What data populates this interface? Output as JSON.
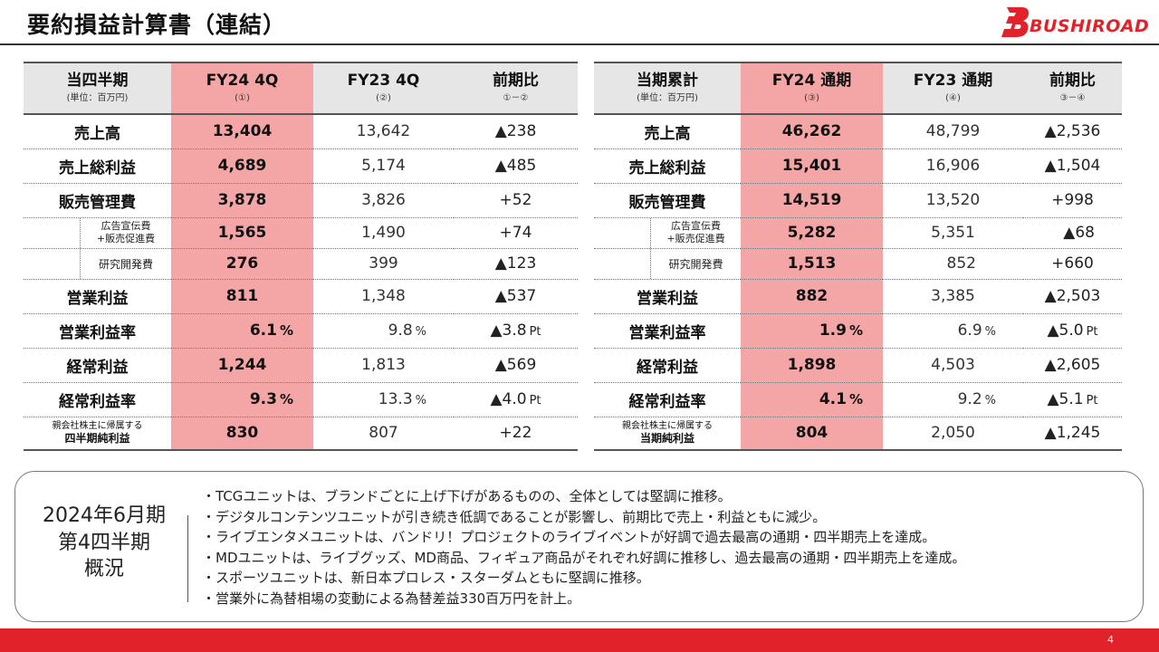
{
  "page": {
    "title": "要約損益計算書（連結）",
    "logo_text": "BUSHIROAD",
    "page_number": "4",
    "accent_color": "#e2222a",
    "highlight_color": "#f4a6a6"
  },
  "quarter_table": {
    "header": {
      "col_label": "当四半期",
      "col_label_sub": "(単位：百万円)",
      "col_cur": "FY24 4Q",
      "col_cur_sub": "(①)",
      "col_prev": "FY23 4Q",
      "col_prev_sub": "(②)",
      "col_diff": "前期比",
      "col_diff_sub": "①－②"
    },
    "rows": [
      {
        "label": "売上高",
        "cur": "13,404",
        "prev": "13,642",
        "diff": "▲238"
      },
      {
        "label": "売上総利益",
        "cur": "4,689",
        "prev": "5,174",
        "diff": "▲485"
      },
      {
        "label": "販売管理費",
        "cur": "3,878",
        "prev": "3,826",
        "diff": "+52"
      },
      {
        "label_line1": "広告宣伝費",
        "label_line2": "+販売促進費",
        "cur": "1,565",
        "prev": "1,490",
        "diff": "+74"
      },
      {
        "label": "研究開発費",
        "cur": "276",
        "prev": "399",
        "diff": "▲123"
      },
      {
        "label": "営業利益",
        "cur": "811",
        "prev": "1,348",
        "diff": "▲537"
      },
      {
        "label": "営業利益率",
        "cur": "6.1",
        "prev": "9.8",
        "diff": "▲3.8",
        "unit": "%",
        "diff_unit": "Pt"
      },
      {
        "label": "経常利益",
        "cur": "1,244",
        "prev": "1,813",
        "diff": "▲569"
      },
      {
        "label": "経常利益率",
        "cur": "9.3",
        "prev": "13.3",
        "diff": "▲4.0",
        "unit": "%",
        "diff_unit": "Pt"
      },
      {
        "label_line1": "親会社株主に帰属する",
        "label_line2": "四半期純利益",
        "cur": "830",
        "prev": "807",
        "diff": "+22"
      }
    ]
  },
  "annual_table": {
    "header": {
      "col_label": "当期累計",
      "col_label_sub": "(単位：百万円)",
      "col_cur": "FY24 通期",
      "col_cur_sub": "(③)",
      "col_prev": "FY23 通期",
      "col_prev_sub": "(④)",
      "col_diff": "前期比",
      "col_diff_sub": "③－④"
    },
    "rows": [
      {
        "label": "売上高",
        "cur": "46,262",
        "prev": "48,799",
        "diff": "▲2,536"
      },
      {
        "label": "売上総利益",
        "cur": "15,401",
        "prev": "16,906",
        "diff": "▲1,504"
      },
      {
        "label": "販売管理費",
        "cur": "14,519",
        "prev": "13,520",
        "diff": "+998"
      },
      {
        "label_line1": "広告宣伝費",
        "label_line2": "+販売促進費",
        "cur": "5,282",
        "prev": "5,351",
        "diff": "▲68"
      },
      {
        "label": "研究開発費",
        "cur": "1,513",
        "prev": "852",
        "diff": "+660"
      },
      {
        "label": "営業利益",
        "cur": "882",
        "prev": "3,385",
        "diff": "▲2,503"
      },
      {
        "label": "営業利益率",
        "cur": "1.9",
        "prev": "6.9",
        "diff": "▲5.0",
        "unit": "%",
        "diff_unit": "Pt"
      },
      {
        "label": "経常利益",
        "cur": "1,898",
        "prev": "4,503",
        "diff": "▲2,605"
      },
      {
        "label": "経常利益率",
        "cur": "4.1",
        "prev": "9.2",
        "diff": "▲5.1",
        "unit": "%",
        "diff_unit": "Pt"
      },
      {
        "label_line1": "親会社株主に帰属する",
        "label_line2": "当期純利益",
        "cur": "804",
        "prev": "2,050",
        "diff": "▲1,245"
      }
    ]
  },
  "summary": {
    "heading_line1": "2024年6月期",
    "heading_line2": "第4四半期",
    "heading_line3": "概況",
    "items": [
      "・TCGユニットは、ブランドごとに上げ下げがあるものの、全体としては堅調に推移。",
      "・デジタルコンテンツユニットが引き続き低調であることが影響し、前期比で売上・利益ともに減少。",
      "・ライブエンタメユニットは、バンドリ！プロジェクトのライブイベントが好調で過去最高の通期・四半期売上を達成。",
      "・MDユニットは、ライブグッズ、MD商品、フィギュア商品がそれぞれ好調に推移し、過去最高の通期・四半期売上を達成。",
      "・スポーツユニットは、新日本プロレス・スターダムともに堅調に推移。",
      "・営業外に為替相場の変動による為替差益330百万円を計上。"
    ]
  }
}
